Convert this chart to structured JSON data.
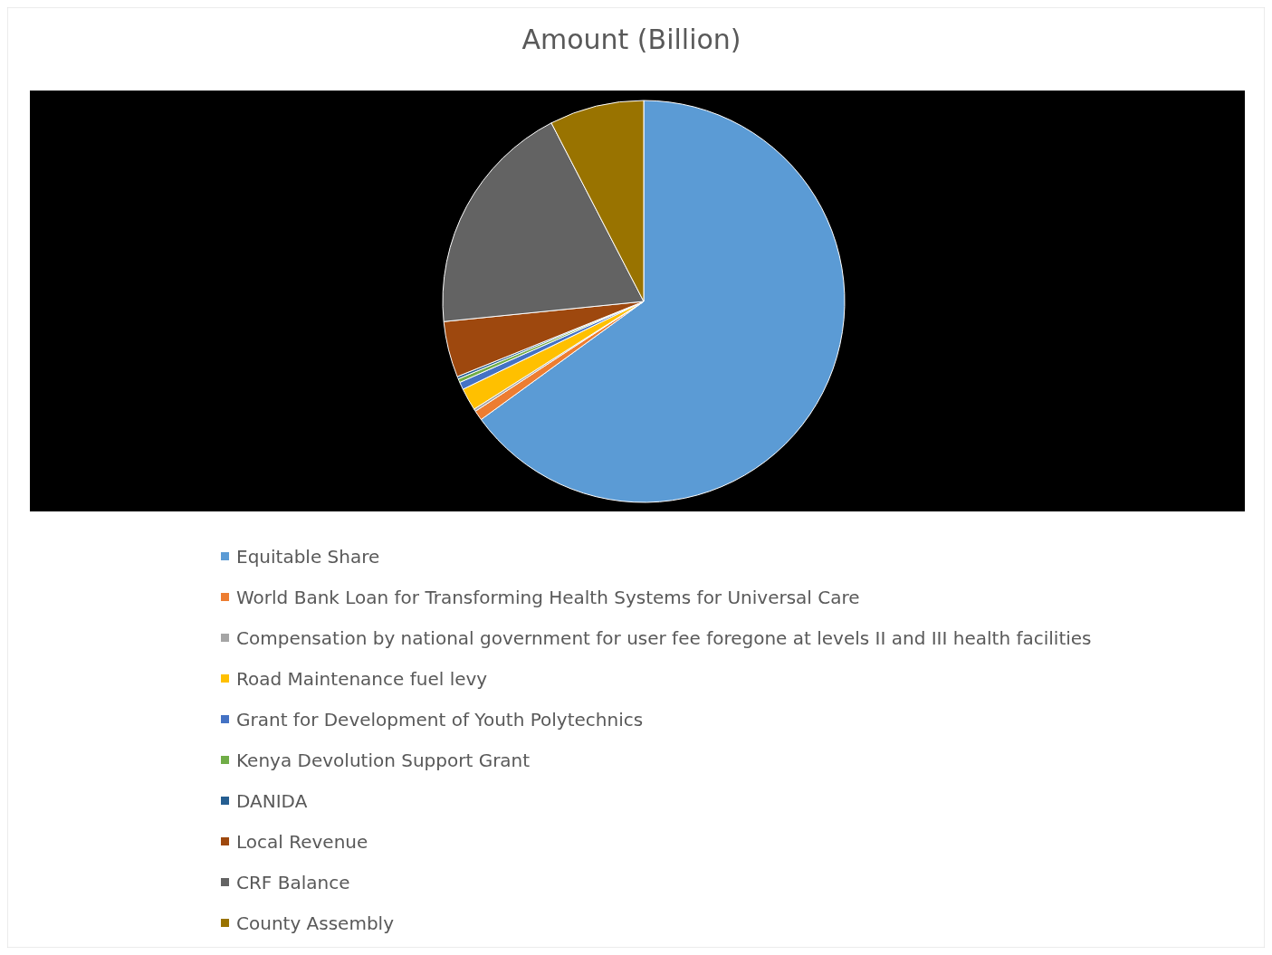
{
  "chart_data": {
    "type": "pie",
    "title": "Amount (Billion)",
    "categories": [
      "Equitable Share",
      "World Bank Loan for Transforming Health Systems for Universal Care",
      "Compensation by national government for user fee foregone at levels II and III health facilities",
      "Road Maintenance fuel levy",
      "Grant for Development of Youth Polytechnics",
      "Kenya Devolution Support Grant",
      "DANIDA",
      "Local Revenue",
      "CRF Balance",
      "County Assembly"
    ],
    "values": [
      65,
      0.8,
      0.2,
      1.8,
      0.6,
      0.3,
      0.2,
      4.5,
      19,
      7.6
    ],
    "colors": [
      "#5b9bd5",
      "#ed7d31",
      "#a5a5a5",
      "#ffc000",
      "#4472c4",
      "#70ad47",
      "#255e91",
      "#9e480e",
      "#636363",
      "#997300"
    ],
    "legend": "bottom"
  }
}
